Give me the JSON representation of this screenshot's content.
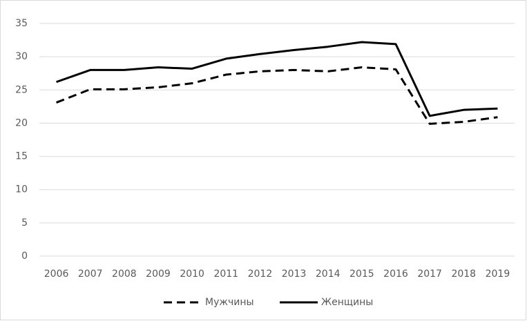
{
  "chart_data": {
    "type": "line",
    "categories": [
      "2006",
      "2007",
      "2008",
      "2009",
      "2010",
      "2011",
      "2012",
      "2013",
      "2014",
      "2015",
      "2016",
      "2017",
      "2018",
      "2019"
    ],
    "series": [
      {
        "name": "Мужчины",
        "color": "#000000",
        "line_style": "dashed",
        "values": [
          23.1,
          25.1,
          25.1,
          25.4,
          26.0,
          27.3,
          27.8,
          28.0,
          27.8,
          28.4,
          28.1,
          19.9,
          20.2,
          20.9
        ]
      },
      {
        "name": "Женщины",
        "color": "#000000",
        "line_style": "solid",
        "values": [
          26.2,
          28.0,
          28.0,
          28.4,
          28.2,
          29.7,
          30.4,
          31.0,
          31.5,
          32.2,
          31.9,
          21.1,
          22.0,
          22.2
        ]
      }
    ],
    "ylim": [
      0,
      35
    ],
    "yticks": [
      0,
      5,
      10,
      15,
      20,
      25,
      30,
      35
    ],
    "grid": true,
    "legend": "bottom"
  }
}
